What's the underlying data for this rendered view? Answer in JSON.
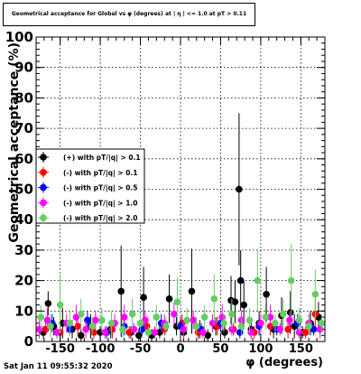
{
  "header": {
    "title": "Geometrical acceptance for Global vs φ (degrees) at | η | <= 1.0 at pT > 0.11"
  },
  "footer": {
    "timestamp": "Sat Jan 11 09:55:32 2020"
  },
  "chart_data": {
    "type": "scatter",
    "title": "Geometrical acceptance for Global vs φ (degrees) at | η | <= 1.0 at pT > 0.11",
    "xlabel": "φ (degrees)",
    "ylabel": "Geometrical acceptance (%)",
    "xlim": [
      -180,
      180
    ],
    "ylim": [
      0,
      100
    ],
    "x_ticks": [
      -150,
      -100,
      -50,
      0,
      50,
      100,
      150
    ],
    "y_ticks": [
      0,
      10,
      20,
      30,
      40,
      50,
      60,
      70,
      80,
      90,
      100
    ],
    "grid": true,
    "legend_position": "middle-left",
    "series": [
      {
        "name": "(+) with pT/|q| > 0.1",
        "color": "#000000",
        "points": [
          [
            -171,
            3,
            2
          ],
          [
            -165,
            12.5,
            4
          ],
          [
            -158,
            5,
            3
          ],
          [
            -147,
            6,
            5
          ],
          [
            -135,
            4,
            3
          ],
          [
            -124,
            2,
            2
          ],
          [
            -112,
            5,
            4
          ],
          [
            -100,
            3,
            2
          ],
          [
            -87,
            4,
            3
          ],
          [
            -74,
            16.5,
            15
          ],
          [
            -62,
            3,
            2
          ],
          [
            -52,
            2,
            2
          ],
          [
            -46,
            14.5,
            10
          ],
          [
            -36,
            2,
            2
          ],
          [
            -26,
            3,
            2
          ],
          [
            -14,
            14,
            8
          ],
          [
            -5,
            5,
            3
          ],
          [
            4,
            3,
            3
          ],
          [
            14,
            16.5,
            14
          ],
          [
            24,
            4,
            3
          ],
          [
            34,
            2,
            2
          ],
          [
            44,
            5,
            3
          ],
          [
            55,
            3,
            2
          ],
          [
            63,
            13.5,
            8
          ],
          [
            68,
            13,
            7
          ],
          [
            73,
            50,
            25
          ],
          [
            75,
            20,
            10
          ],
          [
            79,
            12,
            8
          ],
          [
            88,
            4,
            3
          ],
          [
            98,
            6,
            4
          ],
          [
            107,
            15.5,
            9
          ],
          [
            116,
            4,
            3
          ],
          [
            126,
            8.5,
            6
          ],
          [
            137,
            9.5,
            7
          ],
          [
            142,
            5,
            4
          ],
          [
            152,
            3,
            2
          ],
          [
            162,
            6,
            4
          ],
          [
            172,
            8,
            5
          ]
        ]
      },
      {
        "name": "(-) with pT/|q| > 0.1",
        "color": "#ff0000",
        "points": [
          [
            -168,
            4,
            2
          ],
          [
            -150,
            3,
            2
          ],
          [
            -128,
            5,
            3
          ],
          [
            -108,
            3,
            2
          ],
          [
            -85,
            4,
            3
          ],
          [
            -64,
            3,
            2
          ],
          [
            -42,
            5,
            3
          ],
          [
            -20,
            4,
            2
          ],
          [
            2,
            6,
            3
          ],
          [
            22,
            3,
            2
          ],
          [
            46,
            5,
            3
          ],
          [
            66,
            4,
            2
          ],
          [
            92,
            3,
            2
          ],
          [
            112,
            5,
            3
          ],
          [
            134,
            4,
            3
          ],
          [
            156,
            3,
            2
          ],
          [
            168,
            9,
            5
          ]
        ]
      },
      {
        "name": "(-) with pT/|q| > 0.5",
        "color": "#0000ff",
        "points": [
          [
            -160,
            6,
            3
          ],
          [
            -138,
            4,
            2
          ],
          [
            -116,
            7,
            3
          ],
          [
            -92,
            3,
            2
          ],
          [
            -70,
            5,
            3
          ],
          [
            -48,
            4,
            2
          ],
          [
            -24,
            6,
            3
          ],
          [
            0,
            5,
            3
          ],
          [
            26,
            4,
            2
          ],
          [
            50,
            6,
            3
          ],
          [
            74,
            3,
            2
          ],
          [
            98,
            5,
            3
          ],
          [
            120,
            4,
            2
          ],
          [
            146,
            6,
            3
          ],
          [
            166,
            4,
            2
          ]
        ]
      },
      {
        "name": "(-) with pT/|q| > 1.0",
        "color": "#ff00ff",
        "points": [
          [
            -176,
            4,
            3
          ],
          [
            -166,
            7,
            4
          ],
          [
            -154,
            3,
            2
          ],
          [
            -142,
            6,
            3
          ],
          [
            -130,
            8,
            4
          ],
          [
            -118,
            4,
            3
          ],
          [
            -106,
            7,
            3
          ],
          [
            -94,
            3,
            2
          ],
          [
            -82,
            6,
            3
          ],
          [
            -70,
            8,
            4
          ],
          [
            -58,
            4,
            2
          ],
          [
            -44,
            7,
            3
          ],
          [
            -32,
            3,
            2
          ],
          [
            -20,
            6,
            3
          ],
          [
            -8,
            9,
            4
          ],
          [
            4,
            4,
            3
          ],
          [
            16,
            7,
            3
          ],
          [
            28,
            3,
            2
          ],
          [
            40,
            6,
            3
          ],
          [
            52,
            8,
            4
          ],
          [
            64,
            4,
            2
          ],
          [
            76,
            7,
            3
          ],
          [
            88,
            3,
            2
          ],
          [
            100,
            6,
            3
          ],
          [
            112,
            8,
            4
          ],
          [
            124,
            4,
            2
          ],
          [
            136,
            7,
            3
          ],
          [
            148,
            3,
            2
          ],
          [
            160,
            6,
            3
          ],
          [
            174,
            4,
            3
          ]
        ]
      },
      {
        "name": "(-) with pT/|q| > 2.0",
        "color": "#66cc66",
        "points": [
          [
            -174,
            8,
            4
          ],
          [
            -162,
            5,
            4
          ],
          [
            -150,
            12,
            10
          ],
          [
            -138,
            6,
            4
          ],
          [
            -124,
            9,
            5
          ],
          [
            -110,
            5,
            3
          ],
          [
            -98,
            7,
            4
          ],
          [
            -86,
            6,
            4
          ],
          [
            -72,
            4,
            3
          ],
          [
            -60,
            9,
            5
          ],
          [
            -50,
            6,
            3
          ],
          [
            -40,
            3,
            2
          ],
          [
            -30,
            8,
            4
          ],
          [
            -18,
            5,
            3
          ],
          [
            -4,
            13,
            8
          ],
          [
            8,
            7,
            4
          ],
          [
            20,
            5,
            3
          ],
          [
            30,
            8,
            4
          ],
          [
            42,
            14,
            8
          ],
          [
            54,
            6,
            3
          ],
          [
            64,
            9,
            5
          ],
          [
            76,
            5,
            3
          ],
          [
            86,
            7,
            4
          ],
          [
            96,
            20,
            10
          ],
          [
            106,
            8,
            4
          ],
          [
            118,
            6,
            3
          ],
          [
            128,
            9,
            5
          ],
          [
            138,
            20,
            12
          ],
          [
            148,
            7,
            4
          ],
          [
            160,
            5,
            3
          ],
          [
            168,
            15.5,
            8
          ],
          [
            176,
            6,
            3
          ]
        ]
      }
    ]
  }
}
